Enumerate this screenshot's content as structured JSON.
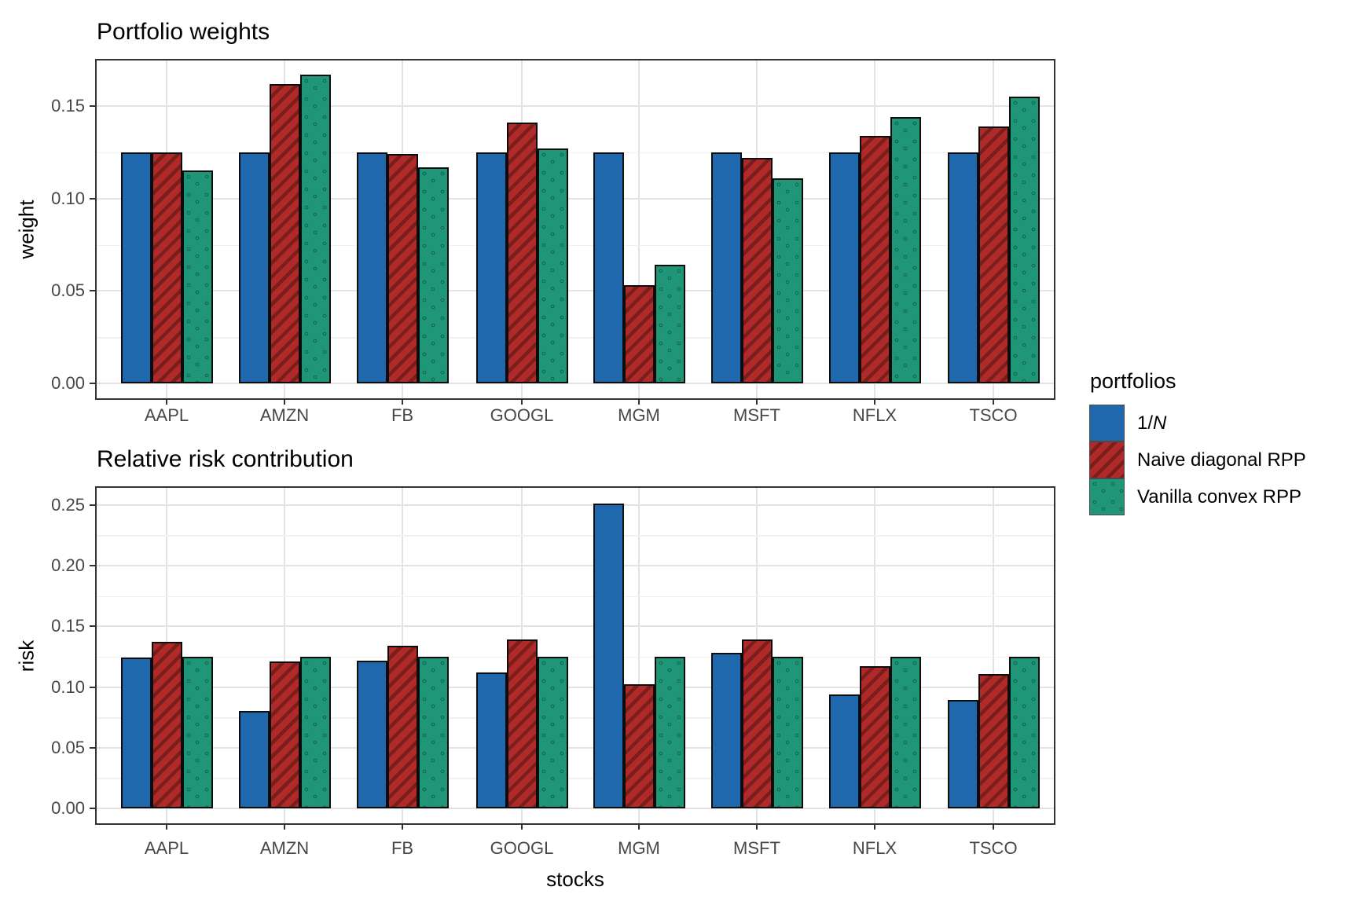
{
  "colors": {
    "blue": "#2068AE",
    "red": "#B02A2A",
    "red_stripe": "#7A1D1D",
    "green": "#1F9678",
    "green_dot": "#07382A",
    "bar_border": "#0C0C0C",
    "grid_major": "#E3E3E3",
    "grid_minor": "#F1F1F1",
    "panel_border": "#333333",
    "tick_text": "#474747"
  },
  "series_styles": [
    {
      "fill": "#2068AE",
      "pattern": "solid"
    },
    {
      "fill": "#B02A2A",
      "pattern": "stripes"
    },
    {
      "fill": "#1F9678",
      "pattern": "dots"
    }
  ],
  "legend": {
    "title": "portfolios",
    "entries": [
      {
        "text": "1/",
        "italic": "N"
      },
      {
        "text": "Naive diagonal RPP",
        "italic": ""
      },
      {
        "text": "Vanilla convex RPP",
        "italic": ""
      }
    ]
  },
  "chart_data": [
    {
      "type": "bar",
      "title": "Portfolio weights",
      "xlabel": "",
      "ylabel": "weight",
      "categories": [
        "AAPL",
        "AMZN",
        "FB",
        "GOOGL",
        "MGM",
        "MSFT",
        "NFLX",
        "TSCO"
      ],
      "series": [
        {
          "name": "1/N",
          "values": [
            0.125,
            0.125,
            0.125,
            0.125,
            0.125,
            0.125,
            0.125,
            0.125
          ]
        },
        {
          "name": "Naive diagonal RPP",
          "values": [
            0.125,
            0.162,
            0.124,
            0.141,
            0.053,
            0.122,
            0.134,
            0.139
          ]
        },
        {
          "name": "Vanilla convex RPP",
          "values": [
            0.115,
            0.167,
            0.117,
            0.127,
            0.064,
            0.111,
            0.144,
            0.155
          ]
        }
      ],
      "yticks": [
        "0.00",
        "0.05",
        "0.10",
        "0.15"
      ],
      "ylim": [
        0,
        0.174
      ],
      "grid": true,
      "legend_position": "right"
    },
    {
      "type": "bar",
      "title": "Relative risk contribution",
      "xlabel": "stocks",
      "ylabel": "risk",
      "categories": [
        "AAPL",
        "AMZN",
        "FB",
        "GOOGL",
        "MGM",
        "MSFT",
        "NFLX",
        "TSCO"
      ],
      "series": [
        {
          "name": "1/N",
          "values": [
            0.124,
            0.08,
            0.122,
            0.112,
            0.251,
            0.128,
            0.094,
            0.089
          ]
        },
        {
          "name": "Naive diagonal RPP",
          "values": [
            0.137,
            0.121,
            0.134,
            0.139,
            0.102,
            0.139,
            0.117,
            0.111
          ]
        },
        {
          "name": "Vanilla convex RPP",
          "values": [
            0.125,
            0.125,
            0.125,
            0.125,
            0.125,
            0.125,
            0.125,
            0.125
          ]
        }
      ],
      "yticks": [
        "0.00",
        "0.05",
        "0.10",
        "0.15",
        "0.20",
        "0.25"
      ],
      "ylim": [
        0,
        0.264
      ],
      "grid": true,
      "legend_position": "right"
    }
  ]
}
